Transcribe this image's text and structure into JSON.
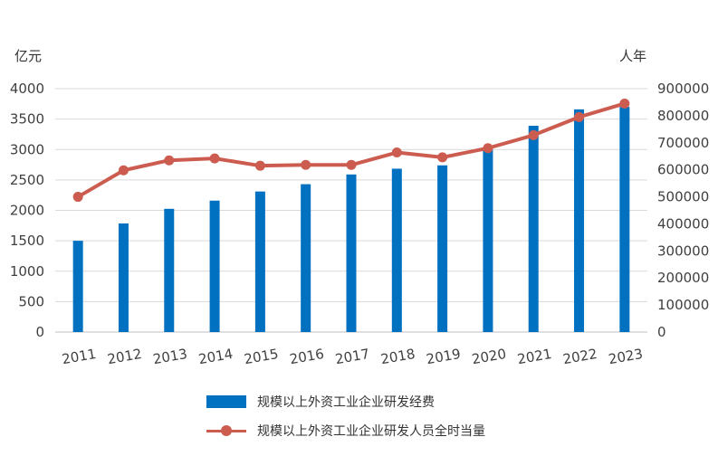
{
  "chart_data": {
    "type": "bar+line",
    "categories": [
      "2011",
      "2012",
      "2013",
      "2014",
      "2015",
      "2016",
      "2017",
      "2018",
      "2019",
      "2020",
      "2021",
      "2022",
      "2023"
    ],
    "series": [
      {
        "name": "规模以上外资工业企业研发经费",
        "type": "bar",
        "axis": "left",
        "color": "#0070C0",
        "values": [
          1500,
          1785,
          2025,
          2160,
          2310,
          2430,
          2590,
          2685,
          2740,
          3000,
          3390,
          3660,
          3700
        ]
      },
      {
        "name": "规模以上外资工业企业研发人员全时当量",
        "type": "line",
        "axis": "right",
        "color": "#CD5C50",
        "values": [
          500000,
          598000,
          635000,
          642000,
          615000,
          618000,
          618000,
          664000,
          646000,
          680000,
          728000,
          795000,
          845000
        ]
      }
    ],
    "y_left": {
      "unit": "亿元",
      "min": 0,
      "max": 4000,
      "ticks": [
        0,
        500,
        1000,
        1500,
        2000,
        2500,
        3000,
        3500,
        4000
      ]
    },
    "y_right": {
      "unit": "人年",
      "min": 0,
      "max": 900000,
      "ticks": [
        0,
        100000,
        200000,
        300000,
        400000,
        500000,
        600000,
        700000,
        800000,
        900000
      ]
    },
    "grid": true,
    "legend_position": "bottom"
  }
}
